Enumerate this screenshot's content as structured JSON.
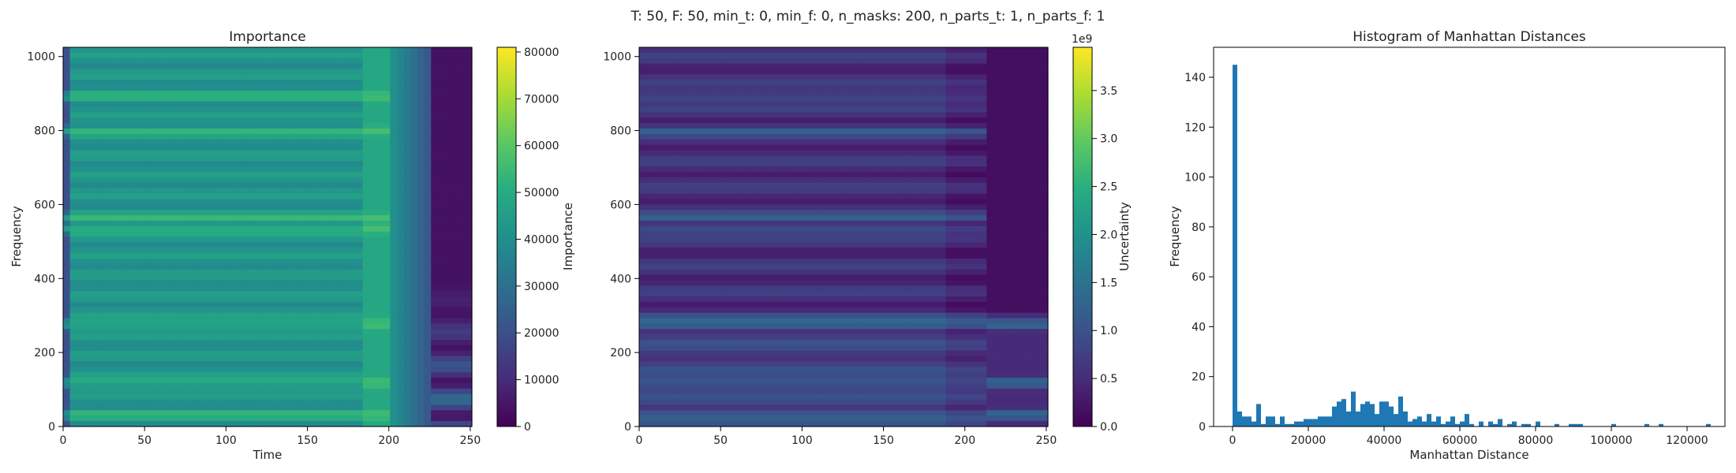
{
  "suptitle": "T: 50, F: 50, min_t: 0, min_f: 0, n_masks: 200, n_parts_t: 1, n_parts_f: 1",
  "chart_data": [
    {
      "type": "heatmap",
      "title": "Importance",
      "xlabel": "Time",
      "ylabel": "Frequency",
      "xlim": [
        0,
        251
      ],
      "ylim": [
        0,
        1025
      ],
      "xticks": [
        "0",
        "50",
        "100",
        "150",
        "200",
        "250"
      ],
      "yticks": [
        "0",
        "200",
        "400",
        "600",
        "800",
        "1000"
      ],
      "colormap": "viridis",
      "colorbar": {
        "label": "Importance",
        "range": [
          0,
          81000
        ],
        "ticks": [
          "0",
          "10000",
          "20000",
          "30000",
          "40000",
          "50000",
          "60000",
          "70000",
          "80000"
        ]
      }
    },
    {
      "type": "heatmap",
      "title": "",
      "xlabel": "",
      "ylabel": "",
      "xlim": [
        0,
        251
      ],
      "ylim": [
        0,
        1025
      ],
      "xticks": [
        "0",
        "50",
        "100",
        "150",
        "200",
        "250"
      ],
      "yticks": [
        "0",
        "200",
        "400",
        "600",
        "800",
        "1000"
      ],
      "colormap": "viridis",
      "colorbar": {
        "label": "Uncertainty",
        "offset": "1e9",
        "range": [
          0,
          3.95
        ],
        "ticks": [
          "0.0",
          "0.5",
          "1.0",
          "1.5",
          "2.0",
          "2.5",
          "3.0",
          "3.5"
        ]
      }
    },
    {
      "type": "bar",
      "title": "Histogram of Manhattan Distances",
      "xlabel": "Manhattan Distance",
      "ylabel": "Frequency",
      "xlim": [
        -5000,
        130000
      ],
      "ylim": [
        0,
        152
      ],
      "xticks": [
        "0",
        "20000",
        "40000",
        "60000",
        "80000",
        "100000",
        "120000"
      ],
      "yticks": [
        "0",
        "20",
        "40",
        "60",
        "80",
        "100",
        "120",
        "140"
      ],
      "bin_width": 1250,
      "bin_start": 0,
      "counts": [
        145,
        6,
        4,
        4,
        2,
        9,
        1,
        4,
        4,
        1,
        4,
        1,
        1,
        2,
        2,
        3,
        3,
        3,
        4,
        4,
        4,
        8,
        10,
        11,
        6,
        14,
        6,
        9,
        10,
        9,
        5,
        10,
        10,
        8,
        5,
        12,
        6,
        2,
        3,
        4,
        2,
        5,
        2,
        4,
        1,
        2,
        4,
        1,
        2,
        5,
        1,
        0,
        2,
        0,
        2,
        1,
        3,
        0,
        1,
        2,
        0,
        1,
        1,
        0,
        2,
        0,
        0,
        0,
        1,
        0,
        0,
        1,
        1,
        1,
        0,
        0,
        0,
        0,
        0,
        0,
        1,
        0,
        0,
        0,
        0,
        0,
        0,
        1,
        0,
        0,
        1,
        0,
        0,
        0,
        0,
        0,
        0,
        0,
        0,
        0,
        1
      ],
      "color": "#1f77b4"
    }
  ]
}
